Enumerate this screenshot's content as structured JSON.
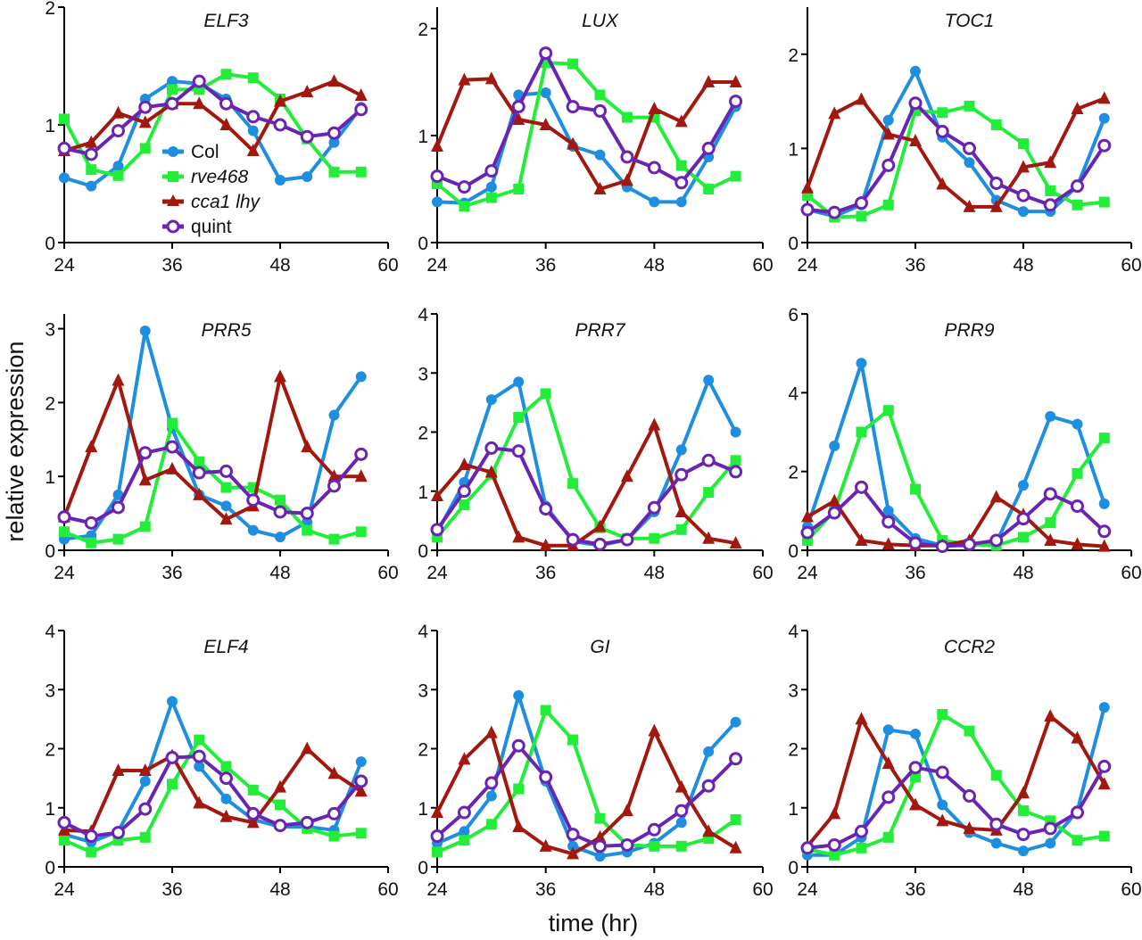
{
  "chart_data": {
    "type": "line",
    "figure_ylabel": "relative expression",
    "figure_xlabel": "time (hr)",
    "series_names": [
      "Col",
      "rve468",
      "cca1 lhy",
      "quint"
    ],
    "series_italic": [
      false,
      true,
      true,
      false
    ],
    "series_colors": {
      "Col": "#1e8fe0",
      "rve468": "#22ee3a",
      "cca1 lhy": "#a3180e",
      "quint": "#6a24b4"
    },
    "series_markers": {
      "Col": "circle",
      "rve468": "square",
      "cca1 lhy": "triangle",
      "quint": "open-circle"
    },
    "x": [
      24,
      27,
      30,
      33,
      36,
      39,
      42,
      45,
      48,
      51,
      54,
      57
    ],
    "xlim": [
      24,
      60
    ],
    "xticks": [
      24,
      36,
      48,
      60
    ],
    "legend": {
      "panel": "ELF3",
      "placement": "lower-middle"
    },
    "panels": [
      {
        "title": "ELF3",
        "ylim": [
          0,
          2
        ],
        "yticks": [
          0,
          1,
          2
        ],
        "series": [
          {
            "name": "Col",
            "values": [
              0.55,
              0.48,
              0.65,
              1.22,
              1.37,
              1.35,
              1.22,
              0.95,
              0.53,
              0.56,
              0.85,
              1.15
            ]
          },
          {
            "name": "rve468",
            "values": [
              1.05,
              0.62,
              0.57,
              0.8,
              1.3,
              1.3,
              1.43,
              1.4,
              1.22,
              0.88,
              0.6,
              0.6
            ]
          },
          {
            "name": "cca1 lhy",
            "values": [
              0.78,
              0.85,
              1.1,
              1.02,
              1.18,
              1.18,
              1.0,
              0.78,
              1.2,
              1.28,
              1.37,
              1.25
            ]
          },
          {
            "name": "quint",
            "values": [
              0.8,
              0.75,
              0.95,
              1.15,
              1.18,
              1.37,
              1.18,
              1.07,
              1.0,
              0.9,
              0.93,
              1.13
            ]
          }
        ]
      },
      {
        "title": "LUX",
        "ylim": [
          0,
          2.2
        ],
        "yticks": [
          0,
          1,
          2
        ],
        "series": [
          {
            "name": "Col",
            "values": [
              0.38,
              0.37,
              0.52,
              1.38,
              1.4,
              0.9,
              0.82,
              0.52,
              0.38,
              0.38,
              0.8,
              1.27
            ]
          },
          {
            "name": "rve468",
            "values": [
              0.55,
              0.34,
              0.42,
              0.5,
              1.68,
              1.67,
              1.38,
              1.17,
              1.17,
              0.72,
              0.5,
              0.62
            ]
          },
          {
            "name": "cca1 lhy",
            "values": [
              0.9,
              1.52,
              1.53,
              1.15,
              1.1,
              0.92,
              0.5,
              0.58,
              1.25,
              1.13,
              1.5,
              1.5
            ]
          },
          {
            "name": "quint",
            "values": [
              0.62,
              0.52,
              0.67,
              1.27,
              1.77,
              1.27,
              1.23,
              0.8,
              0.7,
              0.56,
              0.88,
              1.32
            ]
          }
        ]
      },
      {
        "title": "TOC1",
        "ylim": [
          0,
          2.5
        ],
        "yticks": [
          0,
          1,
          2
        ],
        "series": [
          {
            "name": "Col",
            "values": [
              0.35,
              0.28,
              0.4,
              1.3,
              1.82,
              1.12,
              0.85,
              0.45,
              0.33,
              0.33,
              0.6,
              1.32
            ]
          },
          {
            "name": "rve468",
            "values": [
              0.5,
              0.27,
              0.28,
              0.4,
              1.4,
              1.38,
              1.45,
              1.25,
              1.05,
              0.55,
              0.4,
              0.43
            ]
          },
          {
            "name": "cca1 lhy",
            "values": [
              0.58,
              1.37,
              1.52,
              1.15,
              1.08,
              0.62,
              0.38,
              0.38,
              0.8,
              0.85,
              1.42,
              1.53
            ]
          },
          {
            "name": "quint",
            "values": [
              0.35,
              0.32,
              0.42,
              0.82,
              1.48,
              1.18,
              1.0,
              0.63,
              0.5,
              0.4,
              0.6,
              1.03
            ]
          }
        ]
      },
      {
        "title": "PRR5",
        "ylim": [
          0,
          3.2
        ],
        "yticks": [
          0,
          1,
          2,
          3
        ],
        "series": [
          {
            "name": "Col",
            "values": [
              0.15,
              0.2,
              0.75,
              2.97,
              1.65,
              0.75,
              0.6,
              0.27,
              0.18,
              0.38,
              1.83,
              2.35
            ]
          },
          {
            "name": "rve468",
            "values": [
              0.25,
              0.1,
              0.15,
              0.32,
              1.72,
              1.2,
              0.85,
              0.85,
              0.68,
              0.27,
              0.15,
              0.25
            ]
          },
          {
            "name": "cca1 lhy",
            "values": [
              0.45,
              1.4,
              2.3,
              0.95,
              1.1,
              0.75,
              0.42,
              0.6,
              2.35,
              1.4,
              1.0,
              1.0
            ]
          },
          {
            "name": "quint",
            "values": [
              0.45,
              0.37,
              0.58,
              1.32,
              1.4,
              1.05,
              1.07,
              0.68,
              0.52,
              0.5,
              0.87,
              1.3
            ]
          }
        ]
      },
      {
        "title": "PRR7",
        "ylim": [
          0,
          4
        ],
        "yticks": [
          0,
          1,
          2,
          3,
          4
        ],
        "series": [
          {
            "name": "Col",
            "values": [
              0.3,
              1.15,
              2.55,
              2.85,
              0.75,
              0.15,
              0.08,
              0.18,
              0.65,
              1.7,
              2.88,
              2.0
            ]
          },
          {
            "name": "rve468",
            "values": [
              0.22,
              0.77,
              1.28,
              2.25,
              2.65,
              1.13,
              0.38,
              0.2,
              0.2,
              0.35,
              0.98,
              1.52
            ]
          },
          {
            "name": "cca1 lhy",
            "values": [
              0.92,
              1.45,
              1.32,
              0.22,
              0.08,
              0.08,
              0.4,
              1.25,
              2.12,
              0.65,
              0.2,
              0.12
            ]
          },
          {
            "name": "quint",
            "values": [
              0.35,
              1.0,
              1.73,
              1.68,
              0.7,
              0.18,
              0.1,
              0.18,
              0.72,
              1.28,
              1.52,
              1.33
            ]
          }
        ]
      },
      {
        "title": "PRR9",
        "ylim": [
          0,
          6
        ],
        "yticks": [
          0,
          2,
          4,
          6
        ],
        "series": [
          {
            "name": "Col",
            "values": [
              0.6,
              2.65,
              4.75,
              1.0,
              0.3,
              0.12,
              0.12,
              0.2,
              1.65,
              3.4,
              3.2,
              1.18
            ]
          },
          {
            "name": "rve468",
            "values": [
              0.25,
              1.0,
              3.0,
              3.55,
              1.55,
              0.25,
              0.15,
              0.12,
              0.33,
              0.7,
              1.95,
              2.85
            ]
          },
          {
            "name": "cca1 lhy",
            "values": [
              0.85,
              1.25,
              0.25,
              0.15,
              0.12,
              0.12,
              0.25,
              1.35,
              0.9,
              0.25,
              0.15,
              0.1
            ]
          },
          {
            "name": "quint",
            "values": [
              0.45,
              0.95,
              1.6,
              0.72,
              0.18,
              0.1,
              0.15,
              0.25,
              0.8,
              1.43,
              1.12,
              0.48
            ]
          }
        ]
      },
      {
        "title": "ELF4",
        "ylim": [
          0,
          4
        ],
        "yticks": [
          0,
          1,
          2,
          3,
          4
        ],
        "series": [
          {
            "name": "Col",
            "values": [
              0.55,
              0.42,
              0.6,
              1.45,
              2.8,
              1.7,
              1.15,
              0.8,
              0.68,
              0.68,
              0.62,
              1.78
            ]
          },
          {
            "name": "rve468",
            "values": [
              0.45,
              0.25,
              0.45,
              0.5,
              1.4,
              2.15,
              1.7,
              1.3,
              1.05,
              0.65,
              0.52,
              0.57
            ]
          },
          {
            "name": "cca1 lhy",
            "values": [
              0.62,
              0.6,
              1.63,
              1.63,
              1.88,
              1.08,
              0.85,
              0.75,
              1.35,
              2.0,
              1.58,
              1.28
            ]
          },
          {
            "name": "quint",
            "values": [
              0.75,
              0.52,
              0.58,
              0.98,
              1.85,
              1.87,
              1.5,
              0.9,
              0.7,
              0.75,
              0.9,
              1.45
            ]
          }
        ]
      },
      {
        "title": "GI",
        "ylim": [
          0,
          4
        ],
        "yticks": [
          0,
          1,
          2,
          3,
          4
        ],
        "series": [
          {
            "name": "Col",
            "values": [
              0.4,
              0.6,
              1.2,
              2.9,
              1.45,
              0.35,
              0.18,
              0.25,
              0.4,
              0.75,
              1.95,
              2.45
            ]
          },
          {
            "name": "rve468",
            "values": [
              0.25,
              0.45,
              0.72,
              1.32,
              2.65,
              2.15,
              0.82,
              0.37,
              0.35,
              0.35,
              0.48,
              0.8
            ]
          },
          {
            "name": "cca1 lhy",
            "values": [
              0.92,
              1.82,
              2.27,
              0.68,
              0.35,
              0.22,
              0.5,
              0.95,
              2.3,
              1.35,
              0.6,
              0.32
            ]
          },
          {
            "name": "quint",
            "values": [
              0.52,
              0.92,
              1.42,
              2.05,
              1.52,
              0.55,
              0.35,
              0.37,
              0.63,
              0.95,
              1.37,
              1.83
            ]
          }
        ]
      },
      {
        "title": "CCR2",
        "ylim": [
          0,
          4
        ],
        "yticks": [
          0,
          1,
          2,
          3,
          4
        ],
        "series": [
          {
            "name": "Col",
            "values": [
              0.2,
              0.2,
              0.5,
              2.32,
              2.25,
              1.05,
              0.58,
              0.4,
              0.27,
              0.4,
              0.95,
              2.7
            ]
          },
          {
            "name": "rve468",
            "values": [
              0.3,
              0.2,
              0.32,
              0.5,
              1.52,
              2.58,
              2.3,
              1.55,
              0.95,
              0.78,
              0.45,
              0.52
            ]
          },
          {
            "name": "cca1 lhy",
            "values": [
              0.35,
              0.9,
              2.5,
              1.75,
              1.05,
              0.78,
              0.65,
              0.62,
              1.25,
              2.55,
              2.18,
              1.4
            ]
          },
          {
            "name": "quint",
            "values": [
              0.32,
              0.37,
              0.6,
              1.18,
              1.68,
              1.6,
              1.2,
              0.72,
              0.55,
              0.65,
              0.92,
              1.7
            ]
          }
        ]
      }
    ]
  }
}
